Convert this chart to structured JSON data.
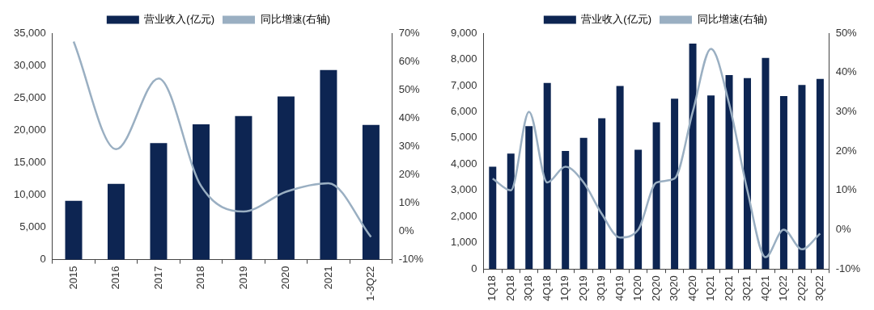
{
  "chart_data": [
    {
      "type": "bar",
      "categories": [
        "2015",
        "2016",
        "2017",
        "2018",
        "2019",
        "2020",
        "2021",
        "1-3Q22"
      ],
      "series": [
        {
          "name": "营业收入(亿元)",
          "color": "#0d2552",
          "values": [
            9100,
            11700,
            18000,
            20900,
            22200,
            25200,
            29300,
            20800
          ]
        },
        {
          "name": "同比增速(右轴)",
          "type": "line",
          "axis": "y2",
          "color": "#9aafc2",
          "values": [
            67,
            29,
            54,
            16,
            7,
            14,
            17,
            -2
          ]
        }
      ],
      "ylim": [
        0,
        35000
      ],
      "yticks": [
        0,
        {
          "value": 5000,
          "label": "5,000"
        },
        {
          "value": 10000,
          "label": "10,000"
        },
        {
          "value": 15000,
          "label": "15,000"
        },
        {
          "value": 20000,
          "label": "20,000"
        },
        {
          "value": 25000,
          "label": "25,000"
        },
        {
          "value": 30000,
          "label": "30,000"
        },
        {
          "value": 35000,
          "label": "35,000"
        }
      ],
      "y2lim": [
        -10,
        70
      ],
      "y2ticks": [
        {
          "value": -10,
          "label": "-10%"
        },
        {
          "value": 0,
          "label": "0%"
        },
        {
          "value": 10,
          "label": "10%"
        },
        {
          "value": 20,
          "label": "20%"
        },
        {
          "value": 30,
          "label": "30%"
        },
        {
          "value": 40,
          "label": "40%"
        },
        {
          "value": 50,
          "label": "50%"
        },
        {
          "value": 60,
          "label": "60%"
        },
        {
          "value": 70,
          "label": "70%"
        }
      ],
      "grid": false,
      "legend": "top",
      "marker": "none",
      "line_style": "solid"
    },
    {
      "type": "bar",
      "categories": [
        "1Q18",
        "2Q18",
        "3Q18",
        "4Q18",
        "1Q19",
        "2Q19",
        "3Q19",
        "4Q19",
        "1Q20",
        "2Q20",
        "3Q20",
        "4Q20",
        "1Q21",
        "2Q21",
        "3Q21",
        "4Q21",
        "1Q22",
        "2Q22",
        "3Q22"
      ],
      "series": [
        {
          "name": "营业收入(亿元)",
          "color": "#0d2552",
          "values": [
            3900,
            4400,
            5450,
            7100,
            4500,
            5000,
            5750,
            6980,
            4550,
            5600,
            6500,
            8600,
            6620,
            7400,
            7280,
            8050,
            6600,
            7020,
            7250
          ]
        },
        {
          "name": "同比增速(右轴)",
          "type": "line",
          "axis": "y2",
          "color": "#9aafc2",
          "values": [
            13,
            10,
            30,
            12,
            16,
            12,
            4,
            -2,
            0,
            12,
            13,
            30,
            46,
            32,
            10,
            -7,
            0,
            -5,
            -1
          ]
        }
      ],
      "ylim": [
        0,
        9000
      ],
      "yticks": [
        0,
        {
          "value": 1000,
          "label": "1,000"
        },
        {
          "value": 2000,
          "label": "2,000"
        },
        {
          "value": 3000,
          "label": "3,000"
        },
        {
          "value": 4000,
          "label": "4,000"
        },
        {
          "value": 5000,
          "label": "5,000"
        },
        {
          "value": 6000,
          "label": "6,000"
        },
        {
          "value": 7000,
          "label": "7,000"
        },
        {
          "value": 8000,
          "label": "8,000"
        },
        {
          "value": 9000,
          "label": "9,000"
        }
      ],
      "y2lim": [
        -10,
        50
      ],
      "y2ticks": [
        {
          "value": -10,
          "label": "-10%"
        },
        {
          "value": 0,
          "label": "0%"
        },
        {
          "value": 10,
          "label": "10%"
        },
        {
          "value": 20,
          "label": "20%"
        },
        {
          "value": 30,
          "label": "30%"
        },
        {
          "value": 40,
          "label": "40%"
        },
        {
          "value": 50,
          "label": "50%"
        }
      ],
      "grid": false,
      "legend": "top",
      "marker": "none",
      "line_style": "solid"
    }
  ]
}
